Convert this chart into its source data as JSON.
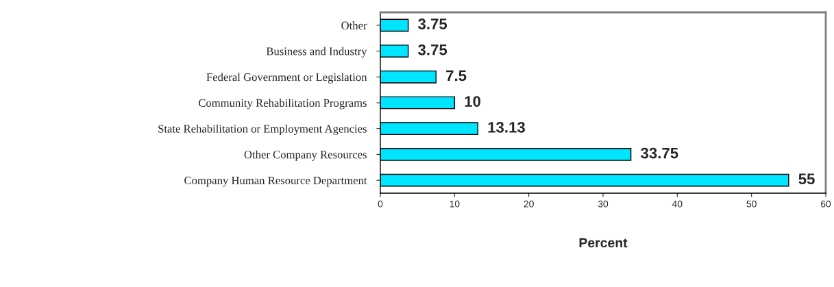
{
  "chart_data": {
    "type": "bar",
    "orientation": "horizontal",
    "xlabel": "Percent",
    "categories": [
      "Other",
      "Business and Industry",
      "Federal Government or Legislation",
      "Community Rehabilitation Programs",
      "State Rehabilitation or Employment Agencies",
      "Other Company Resources",
      "Company Human Resource Department"
    ],
    "values": [
      3.75,
      3.75,
      7.5,
      10,
      13.13,
      33.75,
      55
    ],
    "color": "#00e5ff",
    "data_labels": true,
    "grid": false,
    "xlim": [
      0,
      60
    ],
    "xticks": [
      0,
      10,
      20,
      30,
      40,
      50,
      60
    ]
  }
}
